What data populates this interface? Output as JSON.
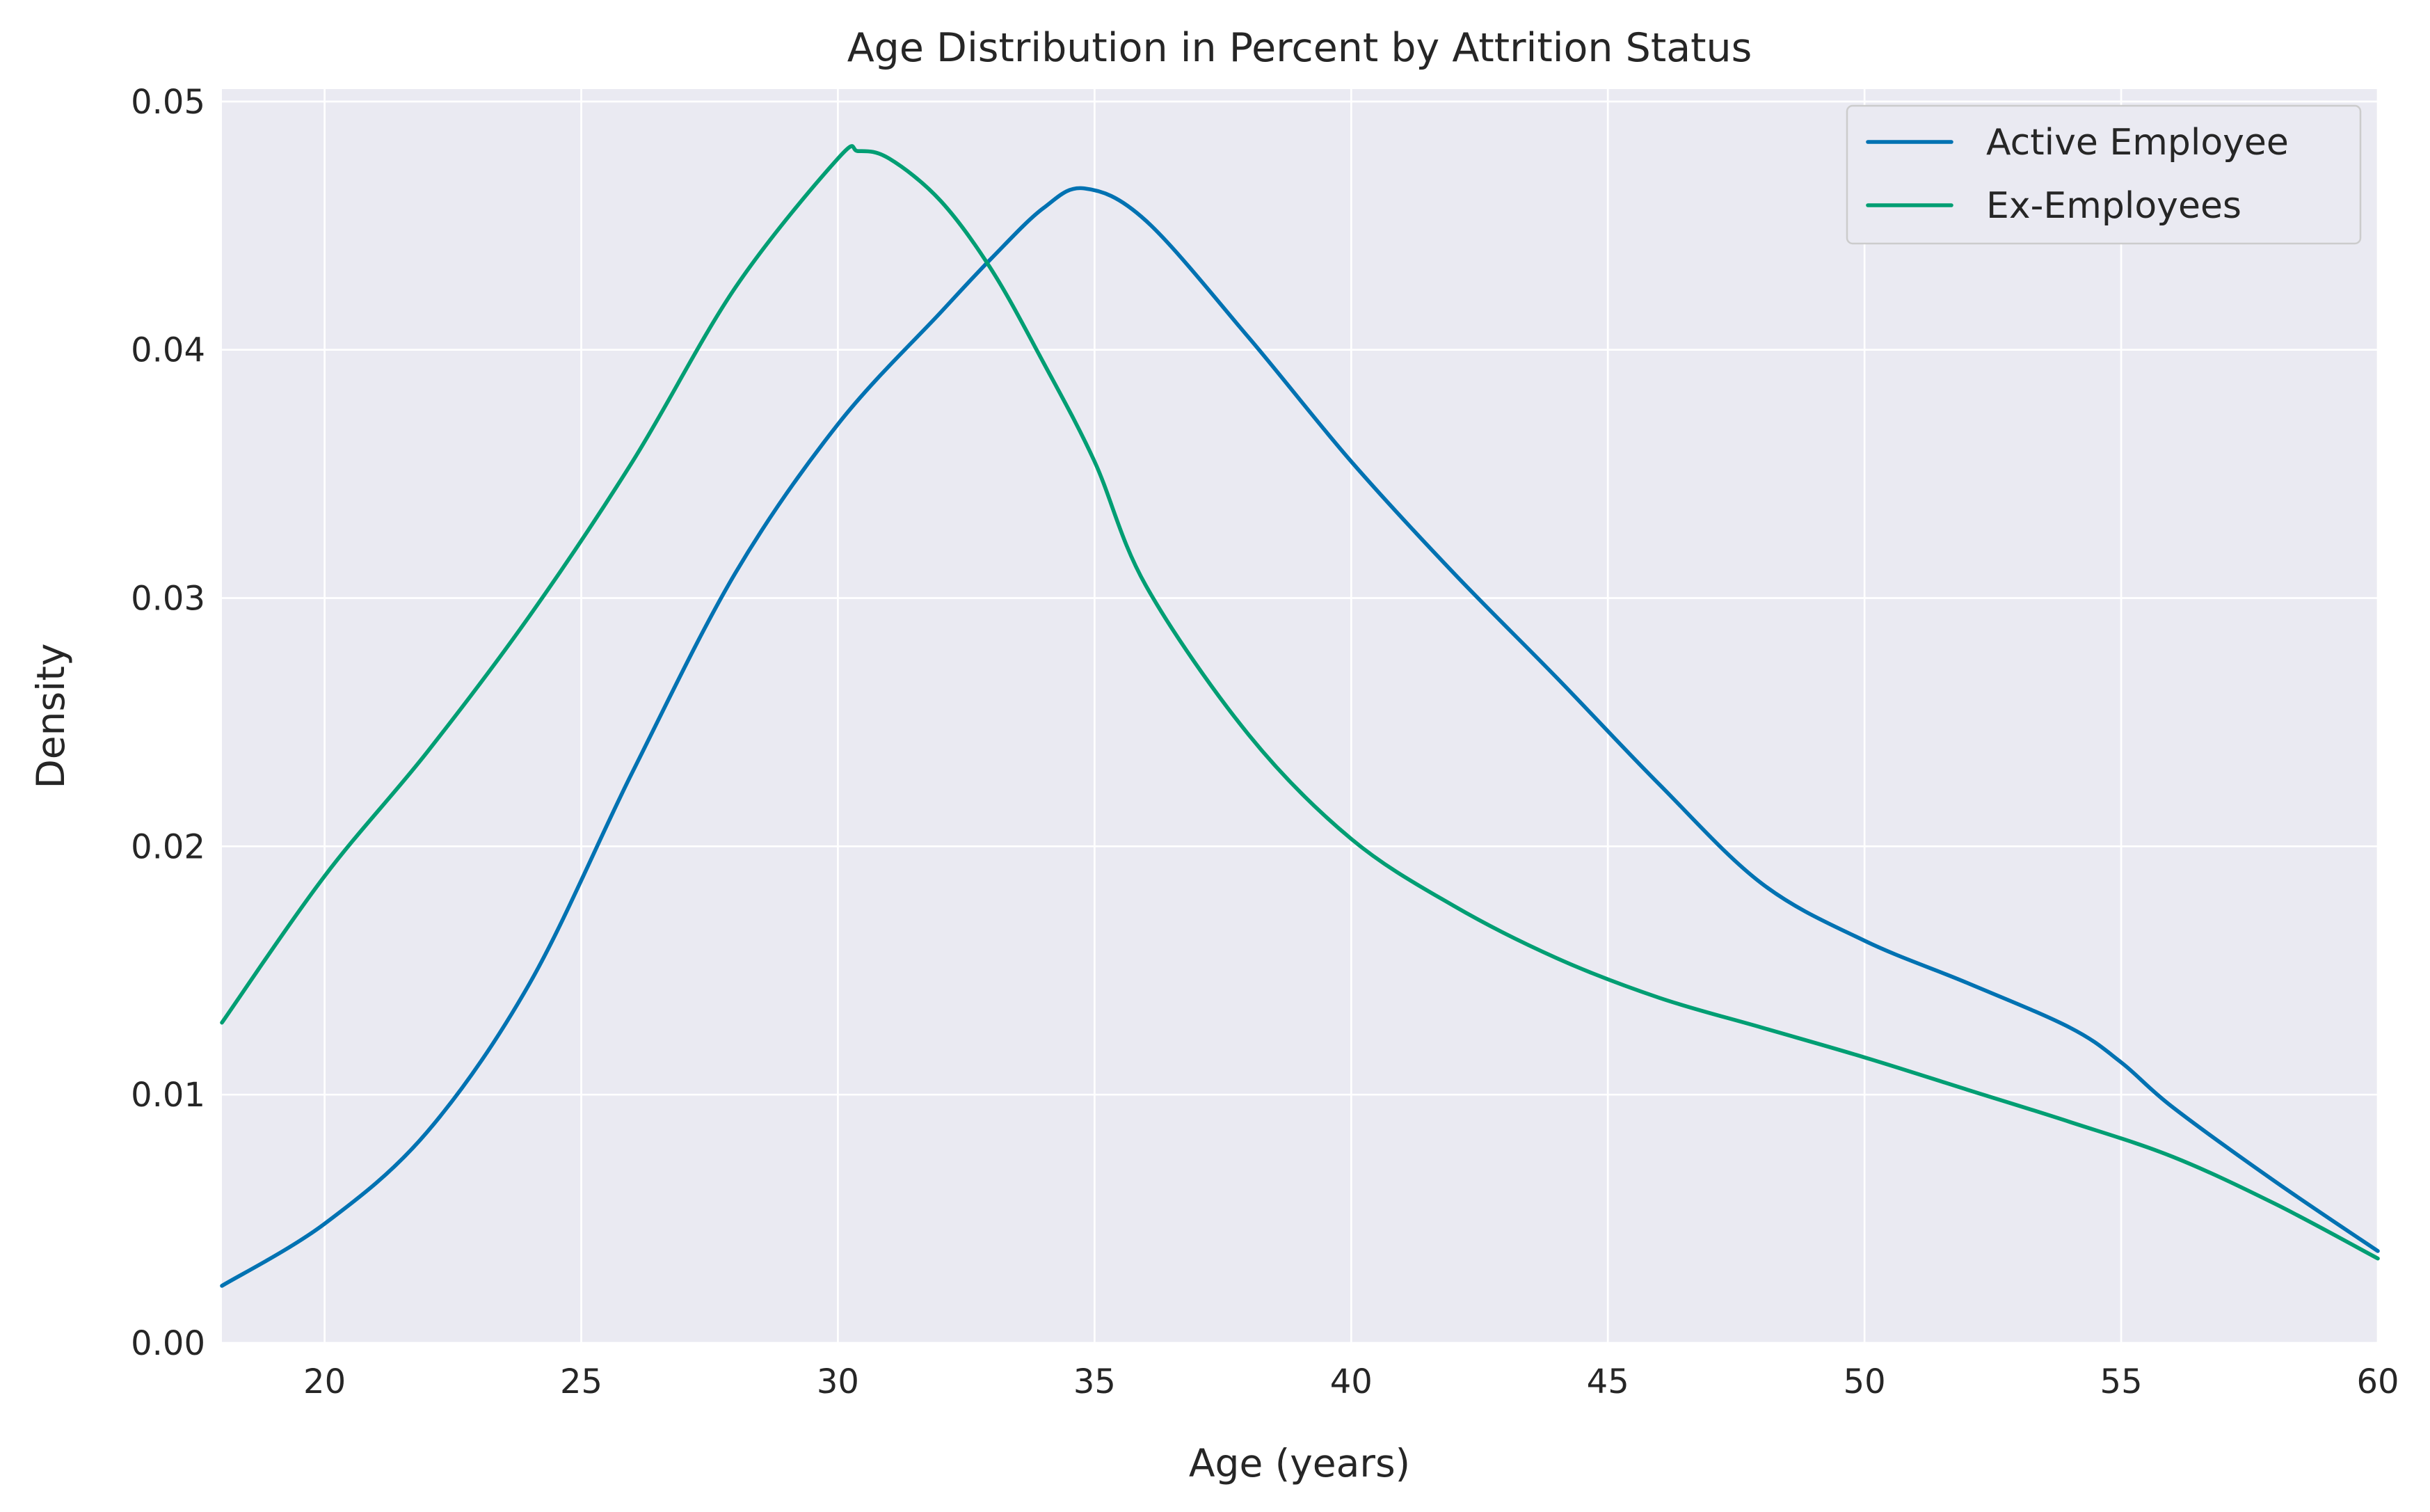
{
  "chart_data": {
    "type": "line",
    "title": "Age Distribution in Percent by Attrition Status",
    "xlabel": "Age (years)",
    "ylabel": "Density",
    "xlim": [
      18,
      60
    ],
    "ylim": [
      0,
      0.0505
    ],
    "x_ticks": [
      20,
      25,
      30,
      35,
      40,
      45,
      50,
      55,
      60
    ],
    "y_ticks": [
      0.0,
      0.01,
      0.02,
      0.03,
      0.04,
      0.05
    ],
    "x_tick_labels": [
      "20",
      "25",
      "30",
      "35",
      "40",
      "45",
      "50",
      "55",
      "60"
    ],
    "y_tick_labels": [
      "0.00",
      "0.01",
      "0.02",
      "0.03",
      "0.04",
      "0.05"
    ],
    "grid": true,
    "legend_position": "top-right",
    "series": [
      {
        "name": "Active Employee",
        "color": "#0072b2",
        "x": [
          18,
          20,
          22,
          24,
          26,
          28,
          30,
          32,
          33,
          34,
          34.8,
          36,
          38,
          40,
          42,
          44,
          46,
          48,
          50,
          52,
          54,
          55,
          56,
          58,
          60
        ],
        "y": [
          0.0023,
          0.0048,
          0.0085,
          0.0145,
          0.023,
          0.031,
          0.037,
          0.0415,
          0.0437,
          0.0457,
          0.0465,
          0.0452,
          0.0405,
          0.0355,
          0.031,
          0.0268,
          0.0225,
          0.0185,
          0.0162,
          0.0145,
          0.0127,
          0.0113,
          0.0095,
          0.0065,
          0.0037
        ]
      },
      {
        "name": "Ex-Employees",
        "color": "#009e73",
        "x": [
          18,
          20,
          22,
          24,
          26,
          28,
          30,
          30.4,
          31,
          32,
          33,
          34,
          35,
          36,
          38,
          40,
          42,
          44,
          46,
          48,
          50,
          52,
          54,
          56,
          58,
          60
        ],
        "y": [
          0.0129,
          0.0188,
          0.0238,
          0.0293,
          0.0355,
          0.0425,
          0.0477,
          0.048,
          0.0477,
          0.046,
          0.0432,
          0.0395,
          0.0355,
          0.0305,
          0.0245,
          0.0203,
          0.0176,
          0.0155,
          0.0139,
          0.0127,
          0.0115,
          0.0102,
          0.0089,
          0.0075,
          0.0056,
          0.0034
        ]
      }
    ]
  }
}
